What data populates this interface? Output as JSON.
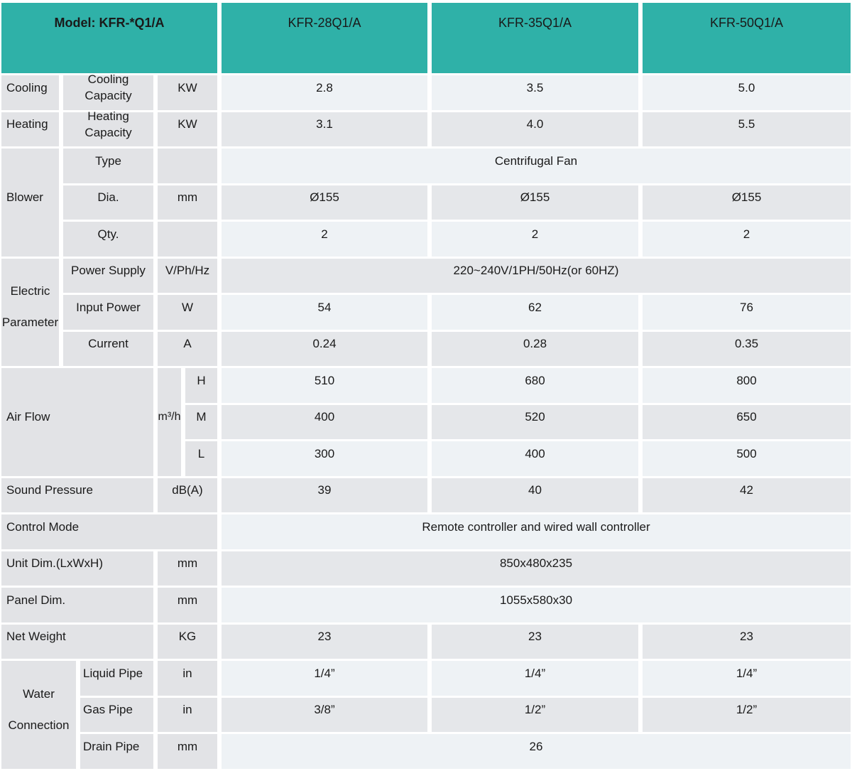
{
  "colors": {
    "header_teal": "#2fb1a8",
    "label_gray": "#e2e3e6",
    "row_light": "#eef2f5",
    "row_dark": "#e5e7ea",
    "text": "#1a1a1a"
  },
  "header": {
    "model_label": "Model: KFR-*Q1/A",
    "models": [
      "KFR-28Q1/A",
      "KFR-35Q1/A",
      "KFR-50Q1/A"
    ]
  },
  "sections": {
    "cooling": {
      "label": "Cooling",
      "sublabel": "Cooling Capacity",
      "unit": "KW",
      "values": [
        "2.8",
        "3.5",
        "5.0"
      ]
    },
    "heating": {
      "label": "Heating",
      "sublabel": "Heating Capacity",
      "unit": "KW",
      "values": [
        "3.1",
        "4.0",
        "5.5"
      ]
    },
    "blower": {
      "label": "Blower",
      "type": {
        "sublabel": "Type",
        "unit": "",
        "merged": "Centrifugal Fan"
      },
      "dia": {
        "sublabel": "Dia.",
        "unit": "mm",
        "values": [
          "Ø155",
          "Ø155",
          "Ø155"
        ]
      },
      "qty": {
        "sublabel": "Qty.",
        "unit": "",
        "values": [
          "2",
          "2",
          "2"
        ]
      }
    },
    "electric": {
      "label": "Electric Parameter",
      "power_supply": {
        "sublabel": "Power Supply",
        "unit": "V/Ph/Hz",
        "merged": "220~240V/1PH/50Hz(or 60HZ)"
      },
      "input_power": {
        "sublabel": "Input Power",
        "unit": "W",
        "values": [
          "54",
          "62",
          "76"
        ]
      },
      "current": {
        "sublabel": "Current",
        "unit": "A",
        "values": [
          "0.24",
          "0.28",
          "0.35"
        ]
      }
    },
    "airflow": {
      "label": "Air Flow",
      "unit": "m³/h",
      "high": {
        "level": "H",
        "values": [
          "510",
          "680",
          "800"
        ]
      },
      "medium": {
        "level": "M",
        "values": [
          "400",
          "520",
          "650"
        ]
      },
      "low": {
        "level": "L",
        "values": [
          "300",
          "400",
          "500"
        ]
      }
    },
    "sound": {
      "label": "Sound Pressure",
      "unit": "dB(A)",
      "values": [
        "39",
        "40",
        "42"
      ]
    },
    "control": {
      "label": "Control Mode",
      "merged": "Remote controller and wired wall controller"
    },
    "unit_dim": {
      "label": "Unit Dim.(LxWxH)",
      "unit": "mm",
      "merged": "850x480x235"
    },
    "panel_dim": {
      "label": "Panel Dim.",
      "unit": "mm",
      "merged": "1055x580x30"
    },
    "net_weight": {
      "label": "Net Weight",
      "unit": "KG",
      "values": [
        "23",
        "23",
        "23"
      ]
    },
    "water": {
      "label": "Water Connection",
      "liquid": {
        "sublabel": "Liquid Pipe",
        "unit": "in",
        "values": [
          "1/4”",
          "1/4”",
          "1/4”"
        ]
      },
      "gas": {
        "sublabel": "Gas Pipe",
        "unit": "in",
        "values": [
          "3/8”",
          "1/2”",
          "1/2”"
        ]
      },
      "drain": {
        "sublabel": "Drain Pipe",
        "unit": "mm",
        "merged": "26"
      }
    }
  }
}
